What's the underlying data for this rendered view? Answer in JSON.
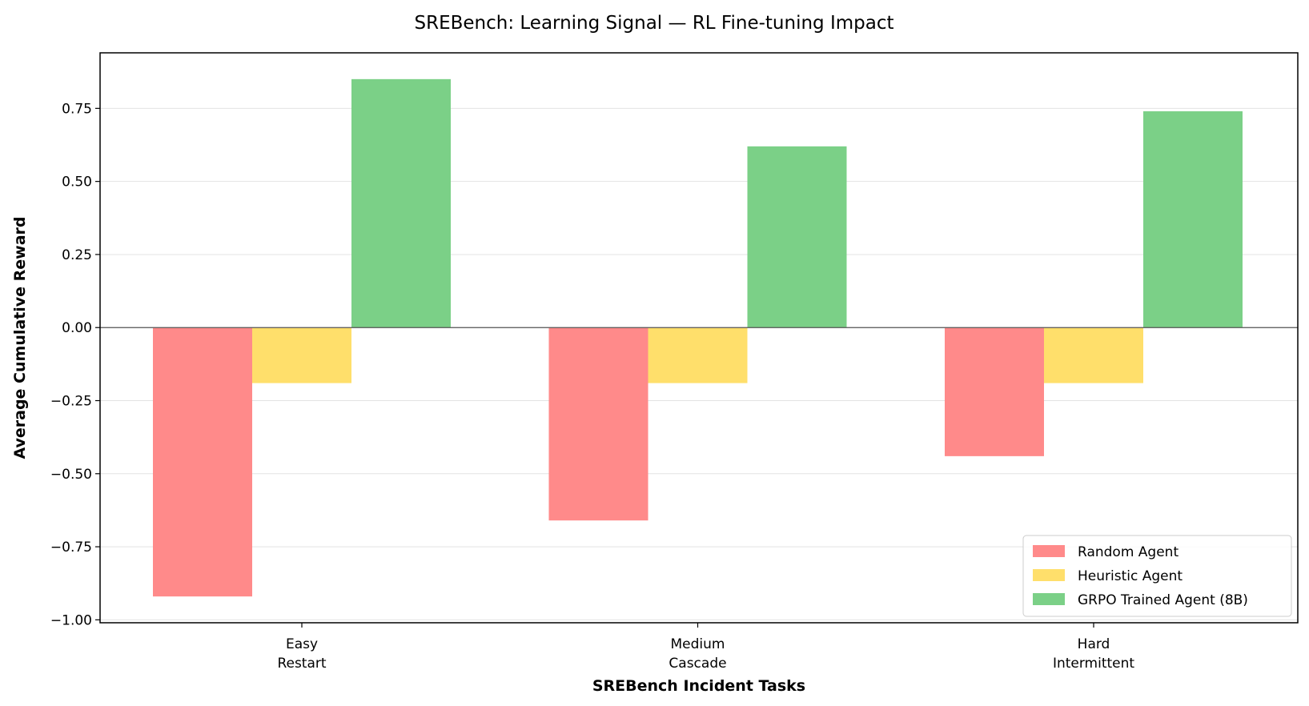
{
  "chart_data": {
    "type": "bar",
    "title": "SREBench: Learning Signal — RL Fine-tuning Impact",
    "xlabel": "SREBench Incident Tasks",
    "ylabel": "Average Cumulative Reward",
    "categories": [
      [
        "Easy",
        "Restart"
      ],
      [
        "Medium",
        "Cascade"
      ],
      [
        "Hard",
        "Intermittent"
      ]
    ],
    "series": [
      {
        "name": "Random Agent",
        "color": "#ff8a8a",
        "values": [
          -0.92,
          -0.66,
          -0.44
        ]
      },
      {
        "name": "Heuristic Agent",
        "color": "#ffdf6b",
        "values": [
          -0.19,
          -0.19,
          -0.19
        ]
      },
      {
        "name": "GRPO Trained Agent (8B)",
        "color": "#7bd087",
        "values": [
          0.85,
          0.62,
          0.74
        ]
      }
    ],
    "ylim": [
      -1.01,
      0.94
    ],
    "yticks": [
      -1.0,
      -0.75,
      -0.5,
      -0.25,
      0.0,
      0.25,
      0.5,
      0.75
    ],
    "ytick_labels": [
      "−1.00",
      "−0.75",
      "−0.50",
      "−0.25",
      "0.00",
      "0.25",
      "0.50",
      "0.75"
    ],
    "grid": "horizontal",
    "zero_line": true,
    "legend_position": "lower-right"
  }
}
